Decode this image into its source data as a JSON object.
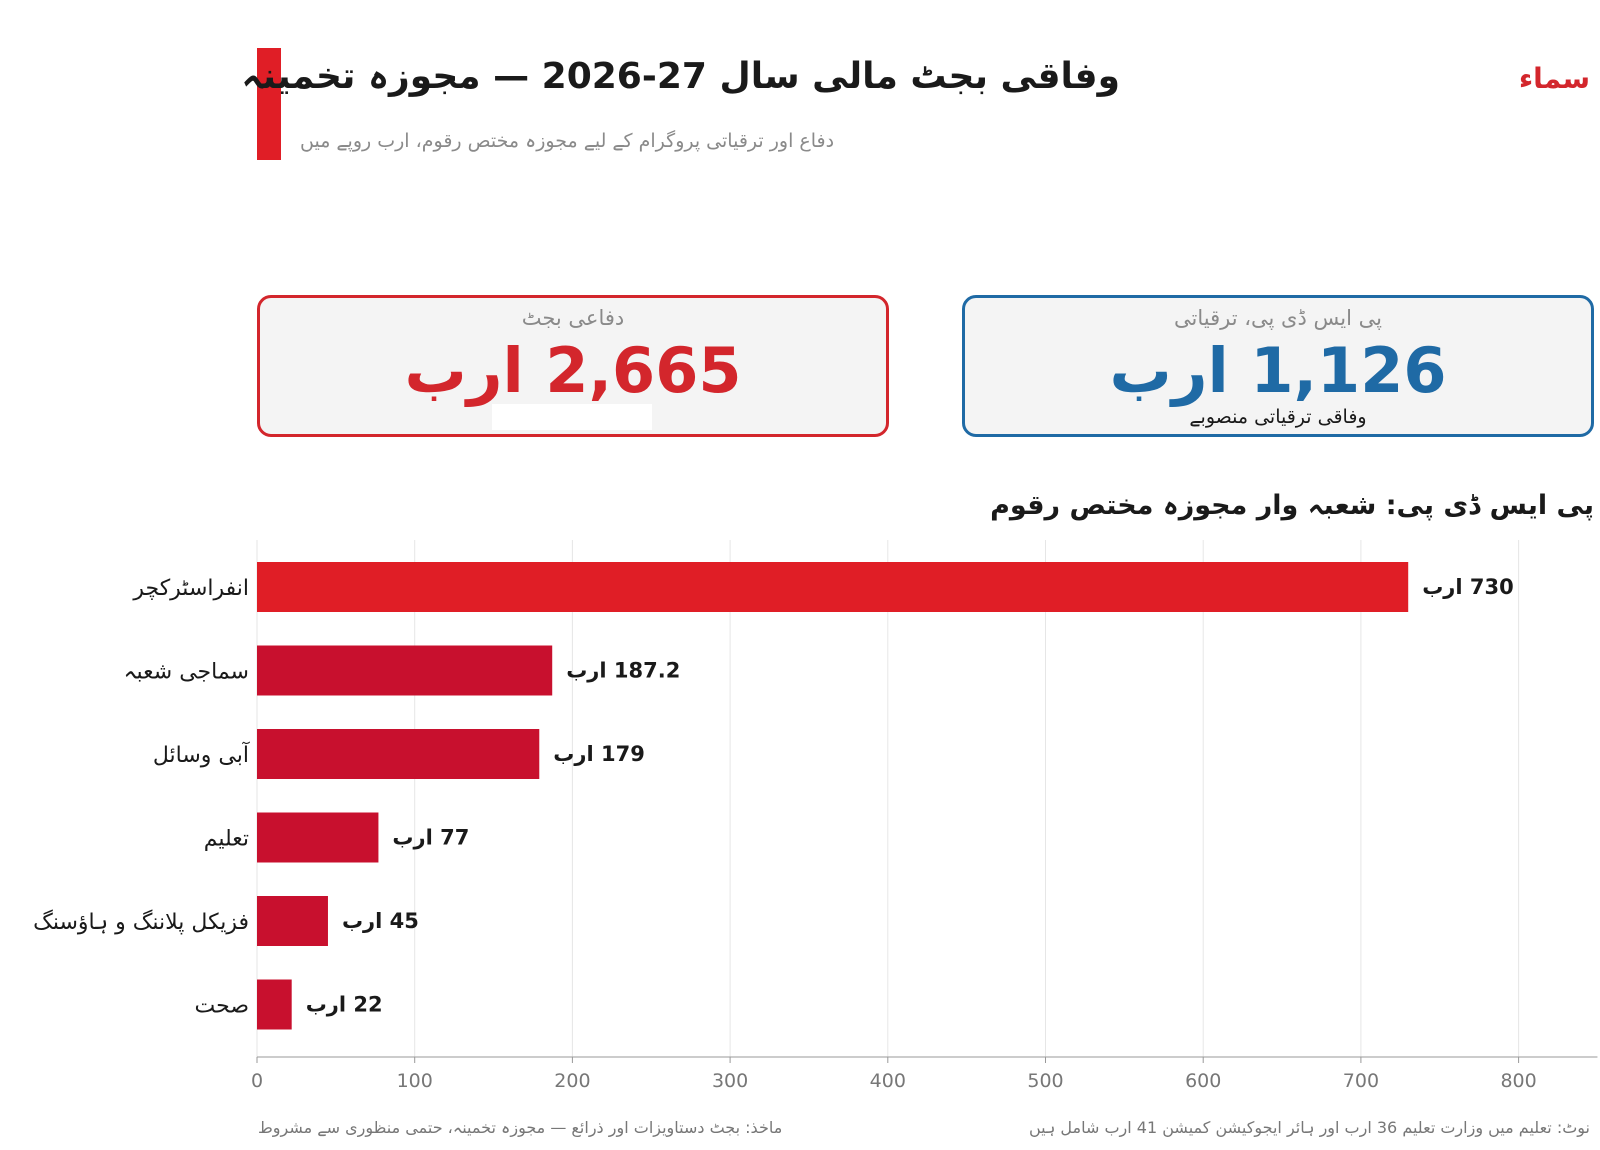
{
  "header": {
    "title": "وفاقی بجٹ مالی سال 27-2026 — مجوزہ تخمینہ",
    "subtitle": "دفاع اور ترقیاتی پروگرام کے لیے مجوزہ مختص رقوم، ارب روپے میں",
    "brand": "سماء"
  },
  "colors": {
    "accent": "#e01e26",
    "brand": "#d3262c",
    "psdp_blue": "#1f6aa5",
    "bar_primary": "#e01e26",
    "bar_secondary": "#c8102e"
  },
  "cards": {
    "defense": {
      "label": "دفاعی بجٹ",
      "value": "2,665 ارب"
    },
    "psdp": {
      "label": "پی ایس ڈی پی، ترقیاتی",
      "value": "1,126 ارب",
      "sub": "وفاقی ترقیاتی منصوبے"
    }
  },
  "section_title": "پی ایس ڈی پی: شعبہ وار مجوزہ مختص رقوم",
  "chart_data": {
    "type": "bar",
    "orientation": "horizontal",
    "categories": [
      "انفراسٹرکچر",
      "سماجی شعبہ",
      "آبی وسائل",
      "تعلیم",
      "فزیکل پلاننگ و ہاؤسنگ",
      "صحت"
    ],
    "values": [
      730,
      187.2,
      179,
      77,
      45,
      22
    ],
    "data_labels": [
      "730 ارب",
      "187.2 ارب",
      "179 ارب",
      "77 ارب",
      "45 ارب",
      "22 ارب"
    ],
    "xlim": [
      0,
      850
    ],
    "xticks": [
      0,
      100,
      200,
      300,
      400,
      500,
      600,
      700,
      800
    ],
    "grid": "vertical"
  },
  "footer": {
    "source": "ماخذ: بجٹ دستاویزات اور ذرائع — مجوزہ تخمینہ، حتمی منظوری سے مشروط",
    "note": "نوٹ: تعلیم میں وزارت تعلیم 36 ارب اور ہائر ایجوکیشن کمیشن 41 ارب شامل ہیں"
  }
}
